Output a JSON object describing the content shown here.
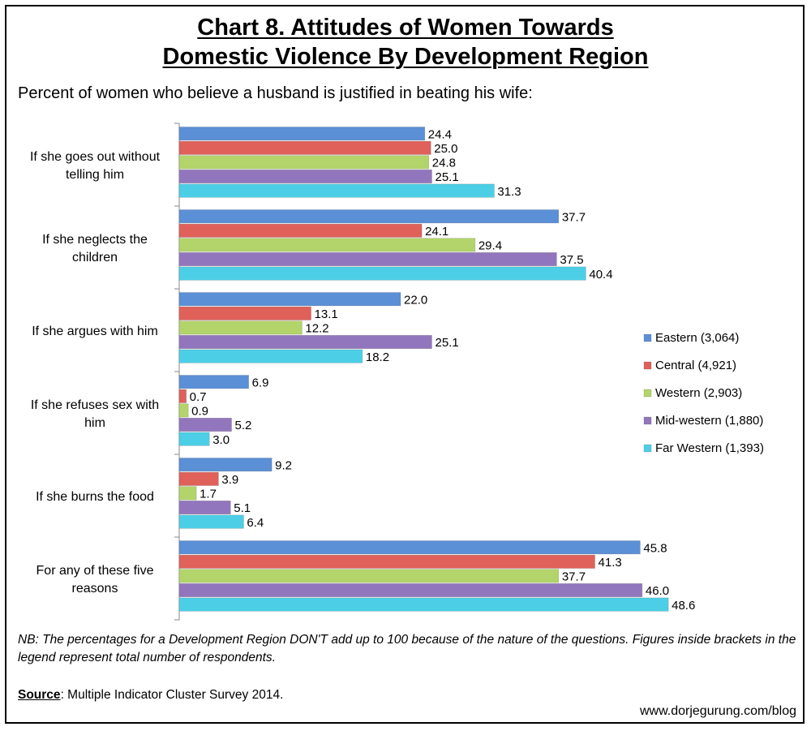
{
  "title_line1": "Chart 8. Attitudes of Women Towards",
  "title_line2": "Domestic Violence By Development Region",
  "subtitle": "Percent of women who believe a husband is justified in beating his wife:",
  "note": "NB: The percentages for a Development Region DON'T add up to 100 because of the nature of the questions. Figures inside brackets in the legend represent total number of respondents.",
  "source_label": "Source",
  "source_text": ": Multiple Indicator Cluster Survey 2014.",
  "credit": "www.dorjegurung.com/blog",
  "chart_data": {
    "type": "bar",
    "orientation": "horizontal",
    "categories": [
      "If she goes out without telling him",
      "If she neglects the children",
      "If she argues with him",
      "If she refuses sex with him",
      "If she burns the food",
      "For any of these five reasons"
    ],
    "series": [
      {
        "name": "Eastern (3,064)",
        "color": "#5b8fd6",
        "values": [
          24.4,
          37.7,
          22.0,
          6.9,
          9.2,
          45.8
        ]
      },
      {
        "name": "Central (4,921)",
        "color": "#e0605a",
        "values": [
          25.0,
          24.1,
          13.1,
          0.7,
          3.9,
          41.3
        ]
      },
      {
        "name": "Western (2,903)",
        "color": "#b3d46a",
        "values": [
          24.8,
          29.4,
          12.2,
          0.9,
          1.7,
          37.7
        ]
      },
      {
        "name": "Mid-western (1,880)",
        "color": "#9276bd",
        "values": [
          25.1,
          37.5,
          25.1,
          5.2,
          5.1,
          46.0
        ]
      },
      {
        "name": "Far Western (1,393)",
        "color": "#4ccfe6",
        "values": [
          31.3,
          40.4,
          18.2,
          3.0,
          6.4,
          48.6
        ]
      }
    ],
    "xlim": [
      0,
      60
    ],
    "grid": false,
    "legend_position": "right",
    "data_labels": true
  }
}
